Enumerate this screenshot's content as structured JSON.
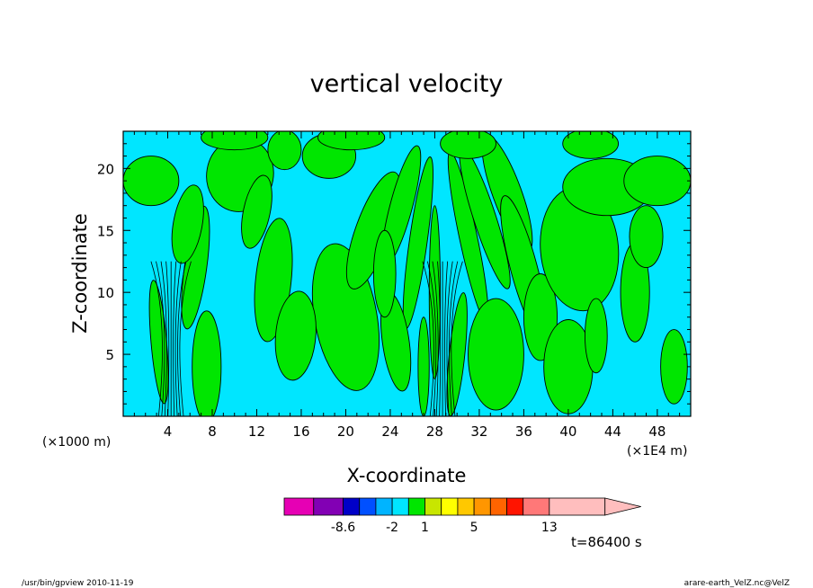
{
  "chart_data": {
    "type": "heatmap",
    "title": "vertical velocity",
    "xlabel": "X-coordinate",
    "ylabel": "Z-coordinate",
    "x_unit_left": "(×1000 m)",
    "x_unit_right": "(×1E4 m)",
    "xlim": [
      0,
      51
    ],
    "ylim": [
      0,
      23
    ],
    "x_ticks": [
      4,
      8,
      12,
      16,
      20,
      24,
      28,
      32,
      36,
      40,
      44,
      48
    ],
    "x_tick_labels": [
      "4",
      "8",
      "12",
      "16",
      "20",
      "24",
      "28",
      "32",
      "36",
      "40",
      "44",
      "48"
    ],
    "y_ticks": [
      5,
      10,
      15,
      20
    ],
    "y_tick_labels": [
      "5",
      "10",
      "15",
      "20"
    ],
    "field_colors": {
      "negative": "#00e6ff",
      "positive": "#00e600",
      "contour": "#000000"
    },
    "colorbar": {
      "colors": [
        "#e600b4",
        "#8200b4",
        "#0000c8",
        "#0050ff",
        "#00b4ff",
        "#00e6ff",
        "#00e600",
        "#c8e600",
        "#ffff00",
        "#ffc800",
        "#ff9600",
        "#ff6400",
        "#ff1400",
        "#ff7878",
        "#ffbebe"
      ],
      "labels": [
        {
          "text": "-8.6",
          "index": 1
        },
        {
          "text": "-2",
          "index": 4
        },
        {
          "text": "1",
          "index": 6
        },
        {
          "text": "5",
          "index": 9
        },
        {
          "text": "13",
          "index": 13
        }
      ]
    },
    "annotation": "t=86400 s"
  },
  "footer": {
    "left": "/usr/bin/gpview   2010-11-19",
    "right": "arare-earth_VelZ.nc@VelZ"
  }
}
